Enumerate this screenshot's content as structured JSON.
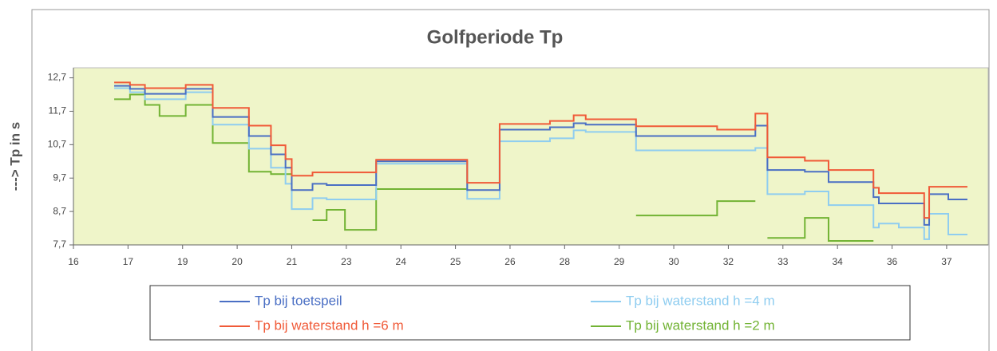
{
  "chart_data": {
    "type": "step",
    "title": "Golfperiode  Tp",
    "ylabel": "---> Tp in s",
    "x": [
      16.98,
      17.36,
      17.72,
      18.07,
      18.7,
      19.35,
      20.22,
      20.75,
      21.1,
      21.25,
      21.75,
      22.09,
      22.53,
      23.28,
      25.47,
      26.25,
      27.46,
      28.03,
      28.32,
      29.53,
      31.48,
      32.4,
      32.69,
      33.59,
      34.16,
      35.24,
      35.37,
      35.85,
      36.46,
      36.58,
      37.04,
      37.5
    ],
    "series": [
      {
        "name": "Tp bij toetspeil",
        "color": "#4a6fc4",
        "values": [
          12.46,
          12.37,
          12.22,
          12.22,
          12.37,
          11.53,
          10.96,
          10.41,
          10.01,
          9.34,
          9.53,
          9.49,
          9.49,
          10.2,
          9.34,
          11.15,
          11.22,
          11.34,
          11.3,
          10.96,
          10.96,
          11.27,
          9.94,
          9.89,
          9.58,
          9.13,
          8.94,
          8.94,
          8.3,
          9.22,
          9.06,
          9.06
        ]
      },
      {
        "name": "Tp bij waterstand h =6 m",
        "color": "#f05a38",
        "values": [
          12.56,
          12.49,
          12.39,
          12.39,
          12.49,
          11.8,
          11.27,
          10.68,
          10.27,
          9.77,
          9.87,
          9.87,
          9.87,
          10.25,
          9.56,
          11.32,
          11.41,
          11.58,
          11.46,
          11.25,
          11.15,
          11.63,
          10.32,
          10.22,
          9.94,
          9.41,
          9.25,
          9.25,
          8.51,
          9.44,
          9.44,
          9.44
        ]
      },
      {
        "name": "Tp bij waterstand h =4 m",
        "color": "#8fcdf0",
        "values": [
          12.39,
          12.27,
          12.06,
          12.06,
          12.27,
          11.3,
          10.58,
          10.01,
          9.53,
          8.77,
          9.1,
          9.06,
          9.06,
          10.13,
          9.08,
          10.8,
          10.89,
          11.13,
          11.08,
          10.53,
          10.53,
          10.6,
          9.22,
          9.3,
          8.89,
          8.22,
          8.34,
          8.22,
          7.87,
          8.63,
          8.01,
          8.01
        ]
      },
      {
        "name": "Tp bij waterstand h =2 m",
        "color": "#72b334",
        "values": [
          12.06,
          12.2,
          11.89,
          11.56,
          11.89,
          10.75,
          9.89,
          9.82,
          9.82,
          null,
          8.44,
          8.75,
          8.15,
          9.37,
          null,
          null,
          null,
          null,
          null,
          8.58,
          9.01,
          null,
          7.91,
          8.51,
          7.82,
          null,
          null,
          null,
          null,
          null,
          null,
          null
        ]
      }
    ],
    "xlim": [
      16,
      38
    ],
    "xticks": [
      16,
      {
        "value": 17.3125,
        "label": "17"
      },
      {
        "value": 18.625,
        "label": "19"
      },
      {
        "value": 19.9375,
        "label": "20"
      },
      {
        "value": 21.25,
        "label": "21"
      },
      {
        "value": 22.5625,
        "label": "23"
      },
      {
        "value": 23.875,
        "label": "24"
      },
      {
        "value": 25.1875,
        "label": "25"
      },
      {
        "value": 26.5,
        "label": "26"
      },
      {
        "value": 27.8125,
        "label": "28"
      },
      {
        "value": 29.125,
        "label": "29"
      },
      {
        "value": 30.4375,
        "label": "30"
      },
      {
        "value": 31.75,
        "label": "32"
      },
      {
        "value": 33.0625,
        "label": "33"
      },
      {
        "value": 34.375,
        "label": "34"
      },
      {
        "value": 35.6875,
        "label": "36"
      },
      {
        "value": 37,
        "label": "37"
      }
    ],
    "ylim": [
      7.7,
      13
    ],
    "yticks": [
      {
        "value": 7.7,
        "label": "7,7"
      },
      {
        "value": 8.7,
        "label": "8,7"
      },
      {
        "value": 9.7,
        "label": "9,7"
      },
      {
        "value": 10.7,
        "label": "10,7"
      },
      {
        "value": 11.7,
        "label": "11,7"
      },
      {
        "value": 12.7,
        "label": "12,7"
      }
    ],
    "plot_background": "#eff5c9"
  }
}
